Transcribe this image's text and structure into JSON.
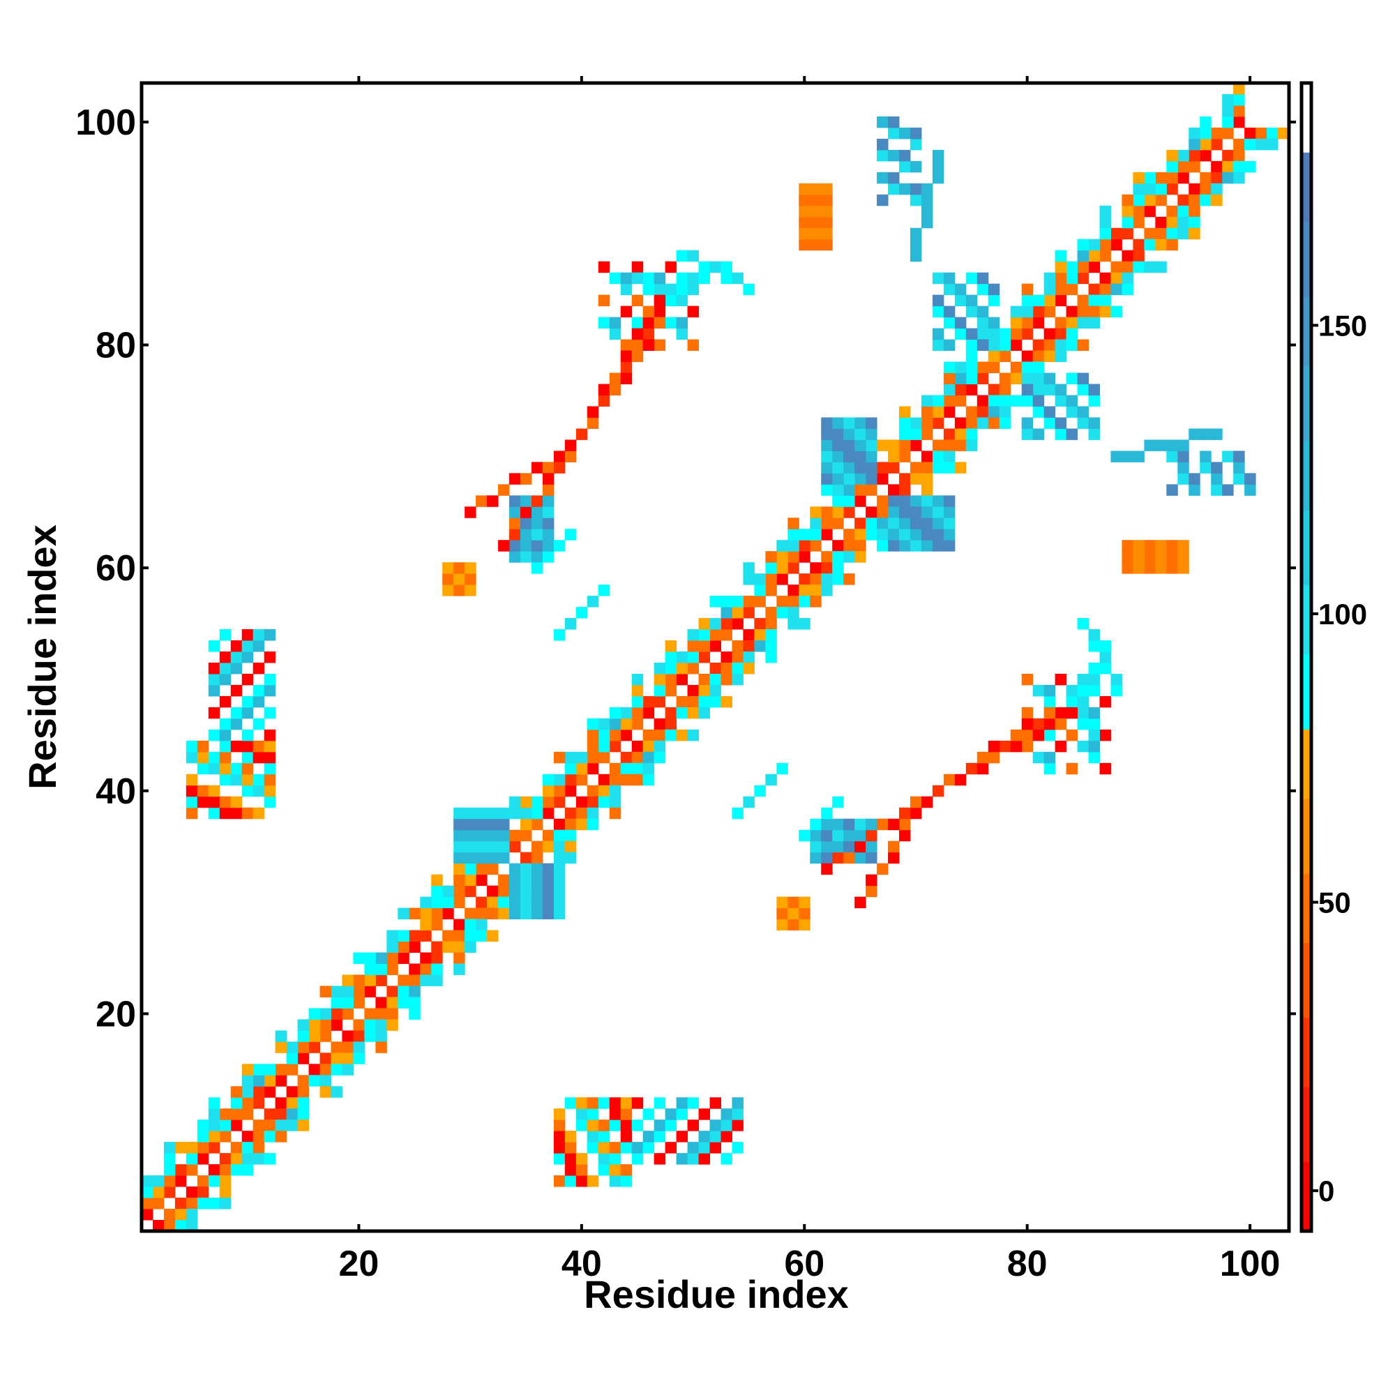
{
  "chart_data": {
    "type": "heatmap",
    "title": "",
    "xlabel": "Residue index",
    "ylabel": "Residue index",
    "xlim": [
      0.5,
      103.5
    ],
    "ylim": [
      0.5,
      103.5
    ],
    "xticks": [
      20,
      40,
      60,
      80,
      100
    ],
    "yticks": [
      20,
      40,
      60,
      80,
      100
    ],
    "colorbar": {
      "range": [
        -7,
        192
      ],
      "ticks": [
        0,
        50,
        100,
        150
      ],
      "bins": [
        [
          5,
          "#ff0000"
        ],
        [
          18,
          "#ff1a00"
        ],
        [
          30,
          "#ff3300"
        ],
        [
          43,
          "#ff5500"
        ],
        [
          55,
          "#ff7000"
        ],
        [
          68,
          "#ff8c00"
        ],
        [
          80,
          "#ffa500"
        ],
        [
          93,
          "#00ffff"
        ],
        [
          105,
          "#1ee0ee"
        ],
        [
          118,
          "#22cce0"
        ],
        [
          130,
          "#2ab8d8"
        ],
        [
          143,
          "#3aa8d0"
        ],
        [
          155,
          "#4498c8"
        ],
        [
          168,
          "#4a88c0"
        ],
        [
          180,
          "#4f7bb8"
        ],
        [
          192,
          "#ffffff"
        ]
      ]
    },
    "symmetric": true,
    "value_codes": {
      "R": 2,
      "r": 20,
      "O": 45,
      "o": 60,
      "A": 72,
      "C": 86,
      "c": 100,
      "L": 125,
      "B": 165
    },
    "diagonals": [
      {
        "offset": 1,
        "codes": "ROrRORrOROrRRORrOROORrORRrOROrRORrOORrROROrRORrOROrRORrOORrROROrRORrOROrRORrOORrROROrRORrOROrRORrOR"
      },
      {
        "offset": 2,
        "codes": "OAOrCOACOOrAOCOAOrCOACOOrAOCOAOrCOACOOrAOCOAOrCOACOOrAOCOAOrCOACOOrAOCOAOrCOACOOrAOCOAOrCOACOOrAOCO"
      },
      {
        "offset": 3,
        "codes": "CcC.ACcOCcLC.cCAcCcOCLcC.ACcOCcLC.cCAcCcOCLcC.ACcOCcLC.cCAcCcOCLcC.ACcOCcLC.cCAcCcOCLcC.ACcOCcLC.cC"
      },
      {
        "offset": 4,
        "codes": "c.CA.Cc.OcC.A.cC.cA.C.c.OcC.A.cC.cA.C.c.OcC.A.cC.cA.C.c.OcC.A.cC.cA.C.c.OcC.A.cC.cA.C.c.OcC.A.cC.cA"
      },
      {
        "offset": 5,
        "codes": "..c...C..A..c...O..C...c..A...C..c...O..C...c..A...C..c...O..C...c..A...C..c...O..C...c..A..."
      }
    ],
    "blocks": [
      [
        5,
        38,
        12,
        44,
        "OCRA.cC.RO.CA"
      ],
      [
        7,
        45,
        12,
        54,
        "C.R.LcR.C.L"
      ],
      [
        29,
        34,
        33,
        38,
        "LcLBc"
      ],
      [
        34,
        61,
        37,
        66,
        "LBcL"
      ],
      [
        62,
        68,
        66,
        73,
        "BLcLB"
      ],
      [
        72,
        80,
        77,
        86,
        "cL.CB."
      ],
      [
        67,
        93,
        70,
        100,
        "B.L.c"
      ],
      [
        60,
        91,
        62,
        94,
        "O"
      ],
      [
        28,
        58,
        30,
        60,
        "AO"
      ],
      [
        42,
        80,
        50,
        87,
        "..C.O..R.cL."
      ],
      [
        45,
        84,
        55,
        88,
        "..c...C.."
      ],
      [
        60,
        89,
        62,
        94,
        "Oo"
      ]
    ],
    "segments": [
      [
        30,
        65,
        38,
        70,
        "RO"
      ],
      [
        40,
        72,
        47,
        84,
        "RRO"
      ],
      [
        36,
        60,
        39,
        63,
        "C"
      ],
      [
        48,
        85,
        53,
        87,
        "cC"
      ],
      [
        70,
        88,
        72,
        97,
        "L"
      ],
      [
        38,
        54,
        42,
        58,
        "Cc"
      ],
      [
        33,
        62,
        47,
        82,
        "RrO"
      ]
    ]
  }
}
